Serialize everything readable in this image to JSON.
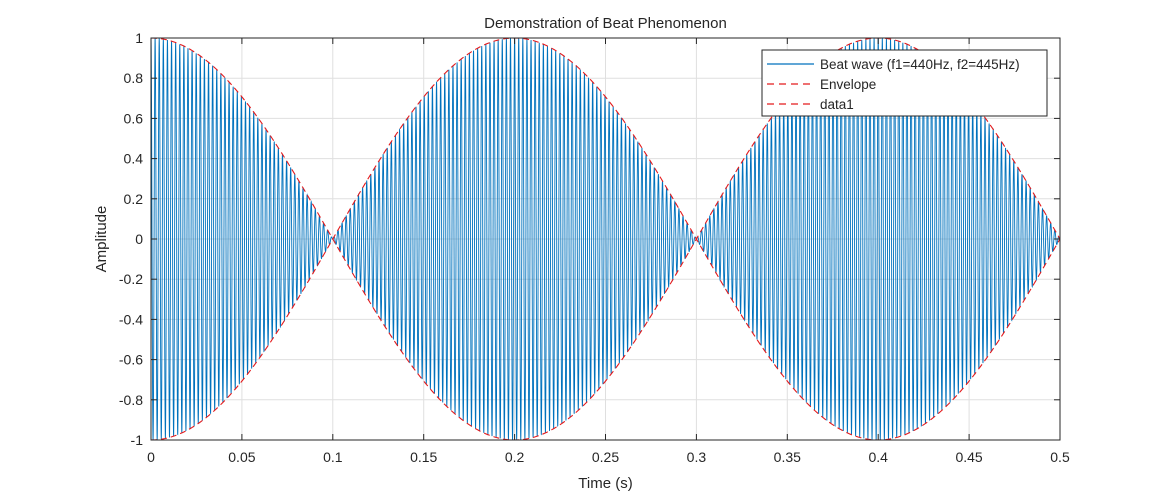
{
  "chart_data": {
    "type": "line",
    "title": "Demonstration of Beat Phenomenon",
    "xlabel": "Time (s)",
    "ylabel": "Amplitude",
    "xlim": [
      0,
      0.5
    ],
    "ylim": [
      -1,
      1
    ],
    "xticks": [
      0,
      0.05,
      0.1,
      0.15,
      0.2,
      0.25,
      0.3,
      0.35,
      0.4,
      0.45,
      0.5
    ],
    "xtick_labels": [
      "0",
      "0.05",
      "0.1",
      "0.15",
      "0.2",
      "0.25",
      "0.3",
      "0.35",
      "0.4",
      "0.45",
      "0.5"
    ],
    "yticks": [
      -1,
      -0.8,
      -0.6,
      -0.4,
      -0.2,
      0,
      0.2,
      0.4,
      0.6,
      0.8,
      1
    ],
    "ytick_labels": [
      "-1",
      "-0.8",
      "-0.6",
      "-0.4",
      "-0.2",
      "0",
      "0.2",
      "0.4",
      "0.6",
      "0.8",
      "1"
    ],
    "grid": true,
    "legend_position": "top-right",
    "series": [
      {
        "name": "Beat wave (f1=440Hz, f2=445Hz)",
        "style": "solid",
        "color": "#0072bd",
        "f1": 440,
        "f2": 445,
        "expression": "0.5*(cos(2*pi*440*t) + cos(2*pi*445*t))"
      },
      {
        "name": "Envelope",
        "style": "dashed",
        "color": "#e41a1c",
        "expression": "|cos(pi*(445-440)*t)|"
      },
      {
        "name": "data1",
        "style": "dashed",
        "color": "#e41a1c",
        "expression": "-|cos(pi*(445-440)*t)|"
      }
    ]
  },
  "colors": {
    "axes": "#262626",
    "grid": "#dfdfdf",
    "beat_wave": "#0072bd",
    "envelope": "#e41a1c"
  }
}
